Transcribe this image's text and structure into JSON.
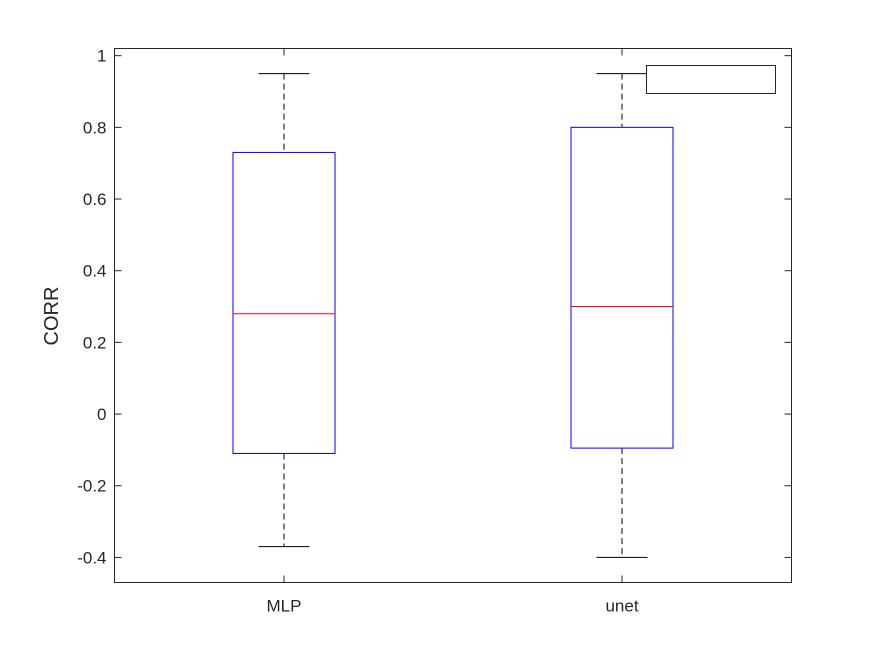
{
  "chart_data": {
    "type": "box",
    "title": "",
    "xlabel": "",
    "ylabel": "CORR",
    "ylim": [
      -0.47,
      1.02
    ],
    "yticks": [
      -0.4,
      -0.2,
      0,
      0.2,
      0.4,
      0.6,
      0.8,
      1
    ],
    "ytick_labels": [
      "-0.4",
      "-0.2",
      "0",
      "0.2",
      "0.4",
      "0.6",
      "0.8",
      "1"
    ],
    "categories": [
      "MLP",
      "unet"
    ],
    "boxes": [
      {
        "category": "MLP",
        "whisker_low": -0.37,
        "q1": -0.11,
        "median": 0.28,
        "q3": 0.73,
        "whisker_high": 0.95
      },
      {
        "category": "unet",
        "whisker_low": -0.4,
        "q1": -0.095,
        "median": 0.3,
        "q3": 0.8,
        "whisker_high": 0.95
      }
    ],
    "legend": {
      "position": "top-right",
      "entries": []
    },
    "grid": false,
    "colors": {
      "box": "#0000ff",
      "median": "#ff0000",
      "whisker": "#000000",
      "axis": "#262626"
    }
  }
}
